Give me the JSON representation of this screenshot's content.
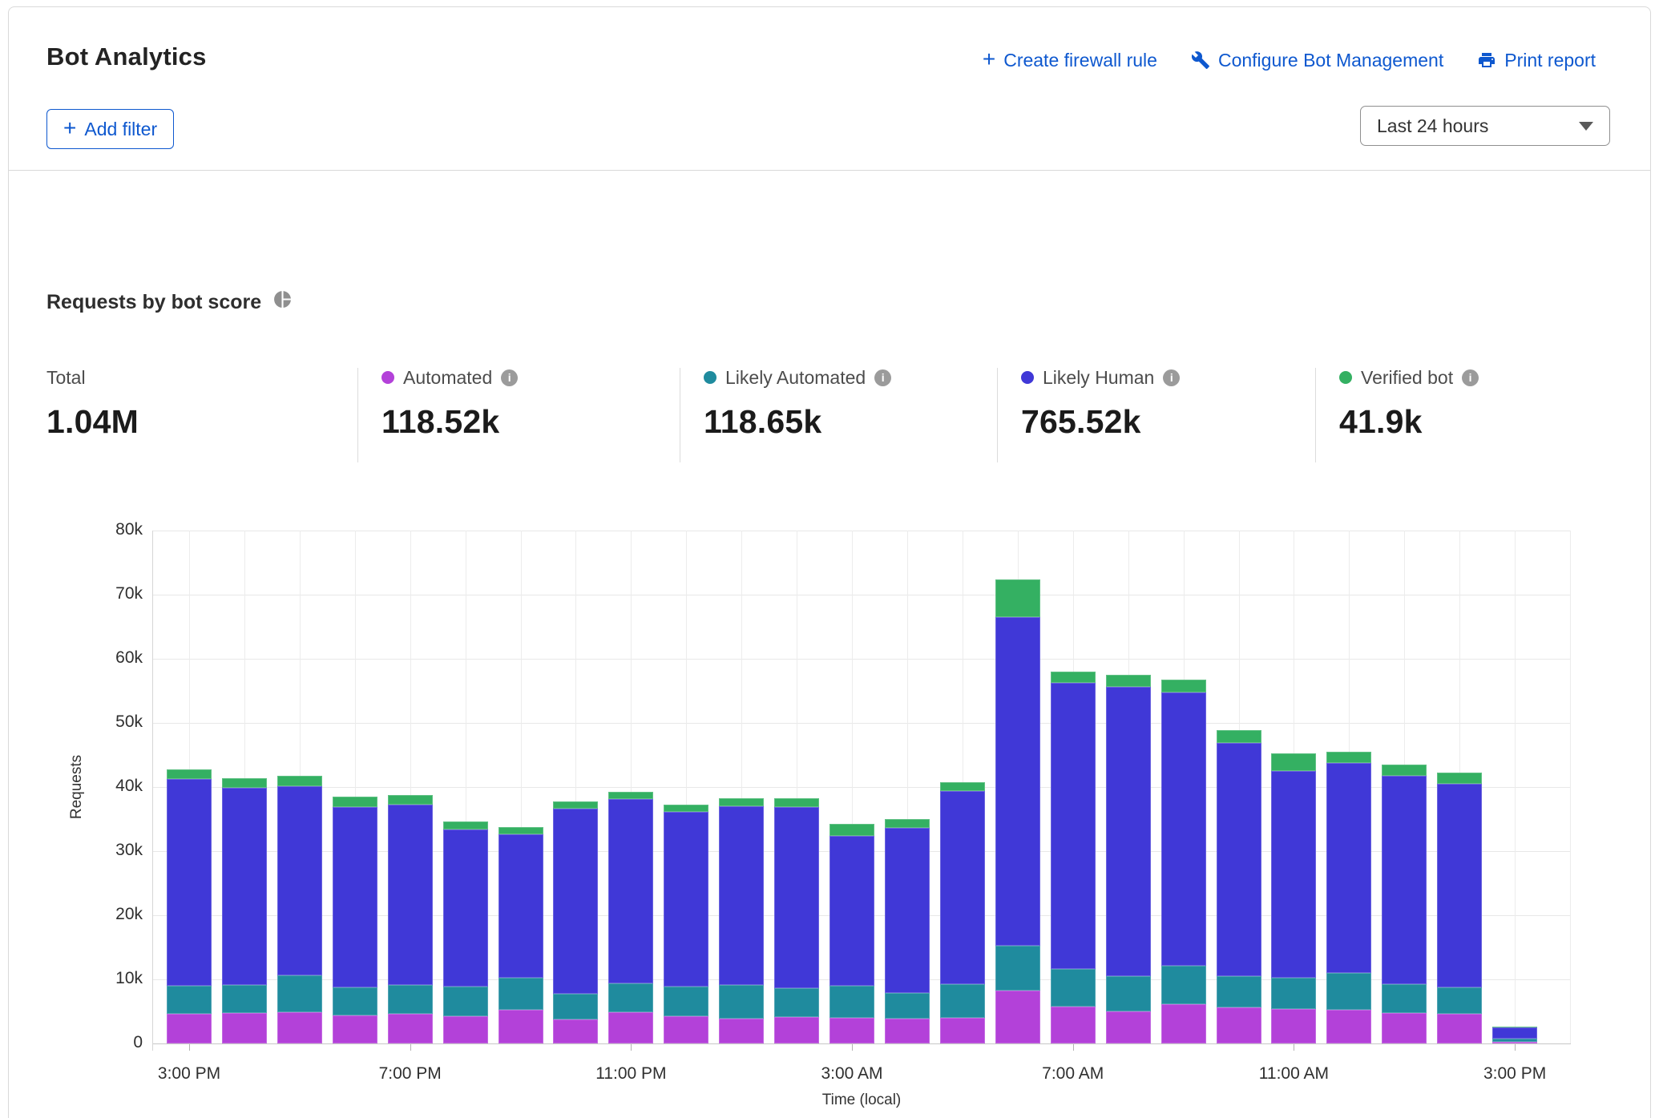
{
  "icons": {
    "plus_glyph": "+",
    "info_glyph": "i"
  },
  "header": {
    "title": "Bot Analytics",
    "actions": [
      {
        "label": "Create firewall rule",
        "icon": "plus-icon"
      },
      {
        "label": "Configure Bot Management",
        "icon": "wrench-icon"
      },
      {
        "label": "Print report",
        "icon": "printer-icon"
      }
    ]
  },
  "toolbar": {
    "add_filter_label": "Add filter",
    "time_range_value": "Last 24 hours"
  },
  "section": {
    "title": "Requests by bot score",
    "icon": "pie-chart-icon"
  },
  "stats": {
    "total": {
      "label": "Total",
      "value": "1.04M"
    },
    "series": [
      {
        "label": "Automated",
        "value": "118.52k",
        "color": "#b341d9"
      },
      {
        "label": "Likely Automated",
        "value": "118.65k",
        "color": "#1f8b9e"
      },
      {
        "label": "Likely Human",
        "value": "765.52k",
        "color": "#4038d7"
      },
      {
        "label": "Verified bot",
        "value": "41.9k",
        "color": "#34b062"
      }
    ]
  },
  "chart_data": {
    "type": "bar",
    "stacked": true,
    "title": "Requests by bot score",
    "xlabel": "Time (local)",
    "ylabel": "Requests",
    "ylim": [
      0,
      80000
    ],
    "grid": true,
    "legend_position": "top-stats-row",
    "y_tick_labels": [
      "0",
      "10k",
      "20k",
      "30k",
      "40k",
      "50k",
      "60k",
      "70k",
      "80k"
    ],
    "categories": [
      "3:00 PM",
      "4:00 PM",
      "5:00 PM",
      "6:00 PM",
      "7:00 PM",
      "8:00 PM",
      "9:00 PM",
      "10:00 PM",
      "11:00 PM",
      "12:00 AM",
      "1:00 AM",
      "2:00 AM",
      "3:00 AM",
      "4:00 AM",
      "5:00 AM",
      "6:00 AM",
      "7:00 AM",
      "8:00 AM",
      "9:00 AM",
      "10:00 AM",
      "11:00 AM",
      "12:00 PM",
      "1:00 PM",
      "2:00 PM",
      "3:00 PM"
    ],
    "x_ticks": [
      {
        "index": 0,
        "label": "3:00 PM"
      },
      {
        "index": 4,
        "label": "7:00 PM"
      },
      {
        "index": 8,
        "label": "11:00 PM"
      },
      {
        "index": 12,
        "label": "3:00 AM"
      },
      {
        "index": 16,
        "label": "7:00 AM"
      },
      {
        "index": 20,
        "label": "11:00 AM"
      },
      {
        "index": 24,
        "label": "3:00 PM"
      }
    ],
    "series": [
      {
        "name": "Automated",
        "color": "#b341d9",
        "values": [
          4600,
          4700,
          4900,
          4400,
          4650,
          4300,
          5300,
          3700,
          4900,
          4300,
          3900,
          4100,
          4000,
          3900,
          4000,
          8200,
          5700,
          5000,
          6100,
          5600,
          5400,
          5200,
          4800,
          4650,
          300
        ]
      },
      {
        "name": "Likely Automated",
        "color": "#1f8b9e",
        "values": [
          4400,
          4400,
          5700,
          4300,
          4500,
          4600,
          5000,
          4100,
          4500,
          4600,
          5200,
          4500,
          5050,
          4000,
          5300,
          7000,
          5900,
          5500,
          6000,
          4900,
          4800,
          5800,
          4400,
          4100,
          400
        ]
      },
      {
        "name": "Likely Human",
        "color": "#4038d7",
        "values": [
          32300,
          30800,
          29500,
          28200,
          28050,
          24500,
          22300,
          28800,
          28700,
          27200,
          27900,
          28300,
          23350,
          25700,
          30100,
          51300,
          44700,
          45100,
          42700,
          36400,
          32300,
          32800,
          32500,
          31750,
          1800
        ]
      },
      {
        "name": "Verified bot",
        "color": "#34b062",
        "values": [
          1400,
          1500,
          1700,
          1600,
          1600,
          1200,
          1100,
          1200,
          1100,
          1200,
          1200,
          1400,
          1900,
          1400,
          1300,
          5900,
          1700,
          1900,
          1900,
          2000,
          2800,
          1700,
          1800,
          1800,
          100
        ]
      }
    ]
  }
}
